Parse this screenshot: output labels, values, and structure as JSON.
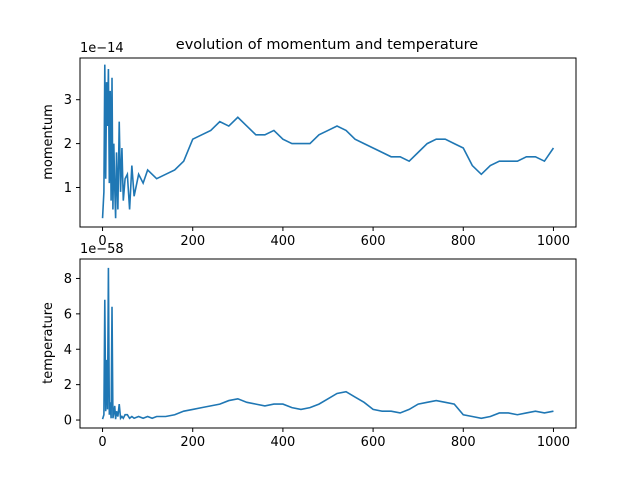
{
  "figure": {
    "title": "evolution of momentum and temperature",
    "line_color": "#1f77b4"
  },
  "chart_data": [
    {
      "type": "line",
      "ylabel": "momentum",
      "offset_text": "1e−14",
      "xlim": [
        -50,
        1050
      ],
      "ylim": [
        0.1,
        3.95
      ],
      "xticks": [
        0,
        200,
        400,
        600,
        800,
        1000
      ],
      "yticks": [
        1,
        2,
        3
      ],
      "grid": false,
      "series": [
        {
          "x": [
            0,
            3,
            5,
            7,
            9,
            11,
            13,
            15,
            17,
            19,
            21,
            23,
            25,
            27,
            29,
            31,
            34,
            37,
            40,
            43,
            46,
            50,
            55,
            60,
            65,
            70,
            80,
            90,
            100,
            110,
            120,
            140,
            160,
            180,
            200,
            220,
            240,
            260,
            280,
            300,
            320,
            340,
            360,
            380,
            400,
            420,
            440,
            460,
            480,
            500,
            520,
            540,
            560,
            580,
            600,
            620,
            640,
            660,
            680,
            700,
            720,
            740,
            760,
            780,
            800,
            820,
            840,
            860,
            880,
            900,
            920,
            940,
            960,
            980,
            1000
          ],
          "y": [
            0.3,
            0.9,
            3.8,
            1.2,
            3.4,
            2.4,
            3.7,
            1.1,
            3.2,
            0.7,
            3.5,
            0.5,
            2.0,
            1.0,
            0.3,
            1.8,
            0.5,
            2.5,
            0.9,
            1.9,
            0.7,
            1.2,
            1.3,
            0.5,
            1.5,
            0.8,
            1.3,
            1.1,
            1.4,
            1.3,
            1.2,
            1.3,
            1.4,
            1.6,
            2.1,
            2.2,
            2.3,
            2.5,
            2.4,
            2.6,
            2.4,
            2.2,
            2.2,
            2.3,
            2.1,
            2.0,
            2.0,
            2.0,
            2.2,
            2.3,
            2.4,
            2.3,
            2.1,
            2.0,
            1.9,
            1.8,
            1.7,
            1.7,
            1.6,
            1.8,
            2.0,
            2.1,
            2.1,
            2.0,
            1.9,
            1.5,
            1.3,
            1.5,
            1.6,
            1.6,
            1.6,
            1.7,
            1.7,
            1.6,
            1.9
          ]
        }
      ]
    },
    {
      "type": "line",
      "ylabel": "temperature",
      "offset_text": "1e−58",
      "xlim": [
        -50,
        1050
      ],
      "ylim": [
        -0.45,
        9.1
      ],
      "xticks": [
        0,
        200,
        400,
        600,
        800,
        1000
      ],
      "yticks": [
        0,
        2,
        4,
        6,
        8
      ],
      "grid": false,
      "series": [
        {
          "x": [
            0,
            3,
            5,
            7,
            9,
            11,
            13,
            15,
            17,
            19,
            21,
            23,
            25,
            27,
            29,
            31,
            34,
            37,
            40,
            43,
            46,
            50,
            55,
            60,
            65,
            70,
            80,
            90,
            100,
            110,
            120,
            140,
            160,
            180,
            200,
            220,
            240,
            260,
            280,
            300,
            320,
            340,
            360,
            380,
            400,
            420,
            440,
            460,
            480,
            500,
            520,
            540,
            560,
            580,
            600,
            620,
            640,
            660,
            680,
            700,
            720,
            740,
            760,
            780,
            800,
            820,
            840,
            860,
            880,
            900,
            920,
            940,
            960,
            980,
            1000
          ],
          "y": [
            0.05,
            0.3,
            6.8,
            0.5,
            3.4,
            0.6,
            8.6,
            0.3,
            1.0,
            0.1,
            6.4,
            0.1,
            0.4,
            0.8,
            0.05,
            0.5,
            0.2,
            0.9,
            0.1,
            0.2,
            0.1,
            0.3,
            0.3,
            0.1,
            0.2,
            0.1,
            0.2,
            0.1,
            0.2,
            0.1,
            0.2,
            0.2,
            0.3,
            0.5,
            0.6,
            0.7,
            0.8,
            0.9,
            1.1,
            1.2,
            1.0,
            0.9,
            0.8,
            0.9,
            0.9,
            0.7,
            0.6,
            0.7,
            0.9,
            1.2,
            1.5,
            1.6,
            1.3,
            1.0,
            0.6,
            0.5,
            0.5,
            0.4,
            0.6,
            0.9,
            1.0,
            1.1,
            1.0,
            0.9,
            0.3,
            0.2,
            0.1,
            0.2,
            0.4,
            0.4,
            0.3,
            0.4,
            0.5,
            0.4,
            0.5
          ]
        }
      ]
    }
  ]
}
